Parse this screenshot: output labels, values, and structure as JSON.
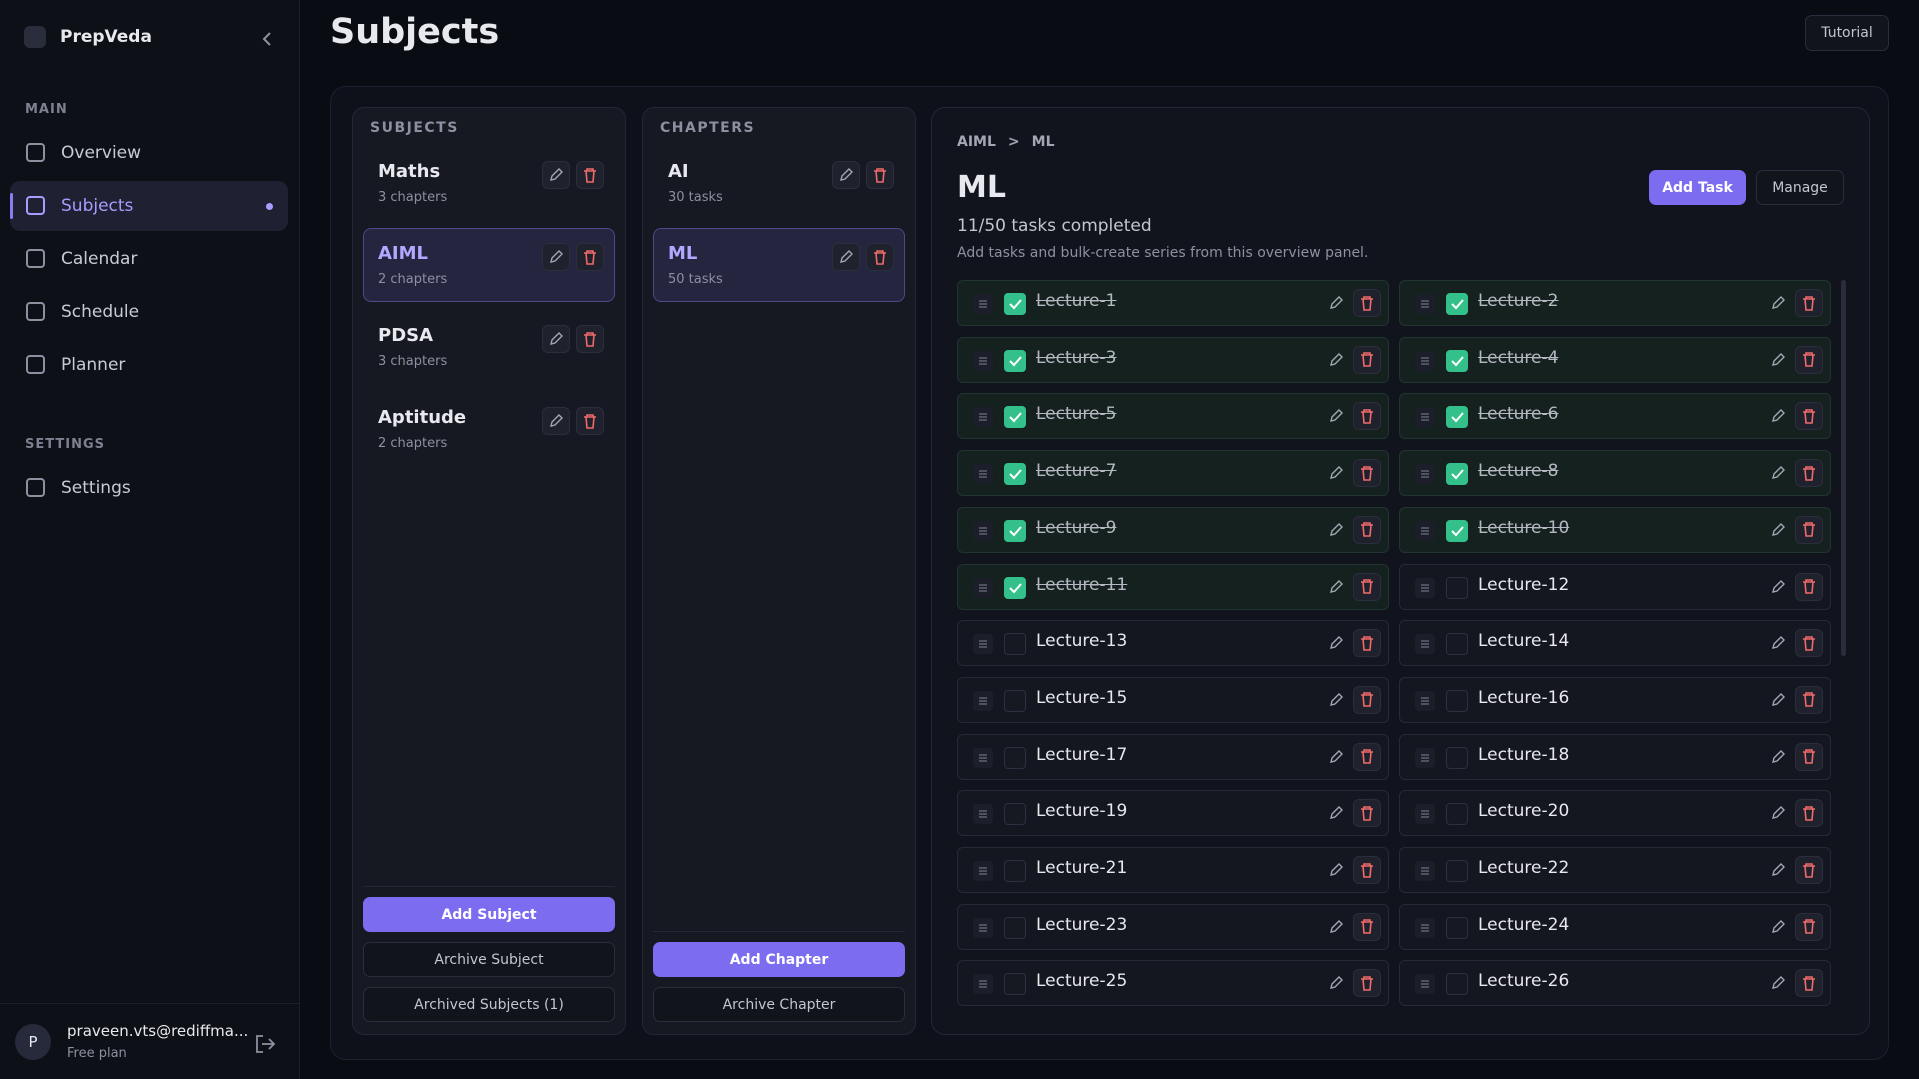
{
  "sidebar": {
    "brand": "PrepVeda",
    "sections": [
      {
        "label": "MAIN",
        "items": [
          "Overview",
          "Subjects",
          "Calendar",
          "Schedule",
          "Planner"
        ]
      },
      {
        "label": "SETTINGS",
        "items": [
          "Settings"
        ]
      }
    ],
    "user": {
      "avatar": "P",
      "email": "praveen.vts@rediffma...",
      "plan": "Free plan"
    }
  },
  "header": {
    "title": "Subjects",
    "tutorial": "Tutorial"
  },
  "subjects": {
    "heading": "SUBJECTS",
    "items": [
      {
        "name": "Maths",
        "meta": "3 chapters"
      },
      {
        "name": "AIML",
        "meta": "2 chapters"
      },
      {
        "name": "PDSA",
        "meta": "3 chapters"
      },
      {
        "name": "Aptitude",
        "meta": "2 chapters"
      }
    ],
    "buttons": [
      "Add Subject",
      "Archive Subject",
      "Archived Subjects (1)"
    ]
  },
  "chapters": {
    "heading": "CHAPTERS",
    "items": [
      {
        "name": "AI",
        "meta": "30 tasks"
      },
      {
        "name": "ML",
        "meta": "50 tasks"
      }
    ],
    "buttons": [
      "Add Chapter",
      "Archive Chapter"
    ]
  },
  "tasks": {
    "breadcrumb": [
      "AIML",
      "ML"
    ],
    "separator": ">",
    "title": "ML",
    "buttons": [
      "Add Task",
      "Manage"
    ],
    "progress": "11/50 tasks completed",
    "description": "Add tasks and bulk-create series from this overview panel.",
    "items": [
      {
        "name": "Lecture-1",
        "done": true
      },
      {
        "name": "Lecture-2",
        "done": true
      },
      {
        "name": "Lecture-3",
        "done": true
      },
      {
        "name": "Lecture-4",
        "done": true
      },
      {
        "name": "Lecture-5",
        "done": true
      },
      {
        "name": "Lecture-6",
        "done": true
      },
      {
        "name": "Lecture-7",
        "done": true
      },
      {
        "name": "Lecture-8",
        "done": true
      },
      {
        "name": "Lecture-9",
        "done": true
      },
      {
        "name": "Lecture-10",
        "done": true
      },
      {
        "name": "Lecture-11",
        "done": true
      },
      {
        "name": "Lecture-12",
        "done": false
      },
      {
        "name": "Lecture-13",
        "done": false
      },
      {
        "name": "Lecture-14",
        "done": false
      },
      {
        "name": "Lecture-15",
        "done": false
      },
      {
        "name": "Lecture-16",
        "done": false
      },
      {
        "name": "Lecture-17",
        "done": false
      },
      {
        "name": "Lecture-18",
        "done": false
      },
      {
        "name": "Lecture-19",
        "done": false
      },
      {
        "name": "Lecture-20",
        "done": false
      },
      {
        "name": "Lecture-21",
        "done": false
      },
      {
        "name": "Lecture-22",
        "done": false
      },
      {
        "name": "Lecture-23",
        "done": false
      },
      {
        "name": "Lecture-24",
        "done": false
      },
      {
        "name": "Lecture-25",
        "done": false
      },
      {
        "name": "Lecture-26",
        "done": false
      }
    ]
  }
}
